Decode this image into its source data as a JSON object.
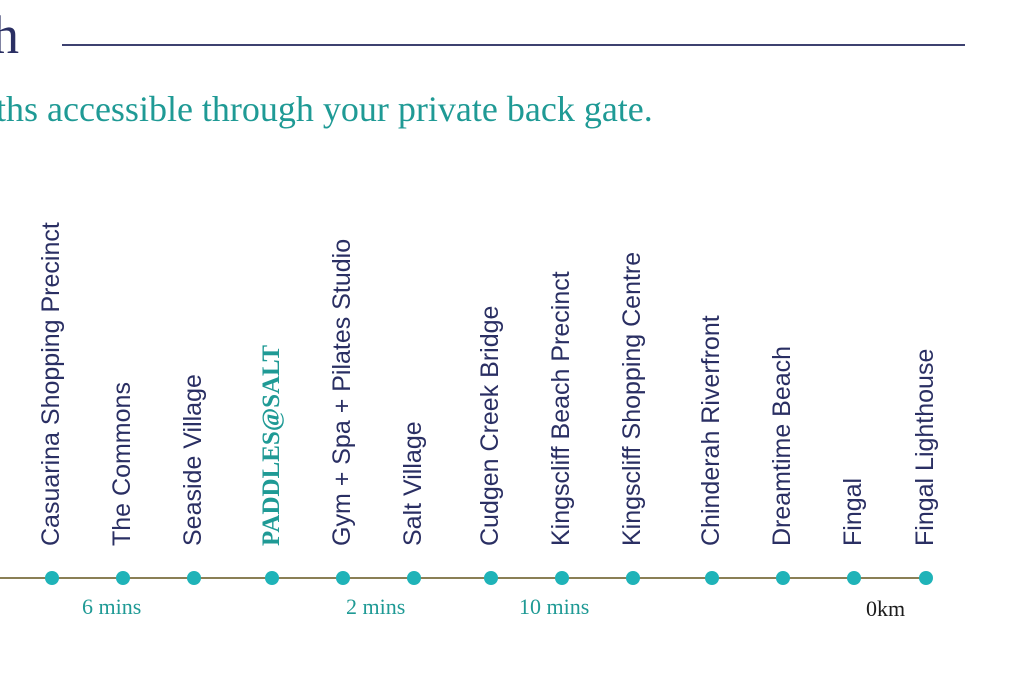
{
  "header": {
    "title_fragment": "h",
    "tagline": "ths accessible through your private back gate."
  },
  "route": {
    "stops": [
      {
        "label": "Casuarina Shopping Precinct",
        "highlight": false
      },
      {
        "label": "The Commons",
        "highlight": false
      },
      {
        "label": "Seaside Village",
        "highlight": false
      },
      {
        "label": "PADDLES@SALT",
        "highlight": true
      },
      {
        "label": "Gym + Spa + Pilates Studio",
        "highlight": false
      },
      {
        "label": "Salt Village",
        "highlight": false
      },
      {
        "label": "Cudgen Creek Bridge",
        "highlight": false
      },
      {
        "label": "Kingscliff Beach Precinct",
        "highlight": false
      },
      {
        "label": "Kingscliff Shopping Centre",
        "highlight": false
      },
      {
        "label": "Chinderah Riverfront",
        "highlight": false
      },
      {
        "label": "Dreamtime Beach",
        "highlight": false
      },
      {
        "label": "Fingal",
        "highlight": false
      },
      {
        "label": "Fingal Lighthouse",
        "highlight": false
      }
    ],
    "times": [
      "6 mins",
      "2 mins",
      "10 mins"
    ],
    "distance_label": "0km",
    "colors": {
      "navy": "#2a2f63",
      "teal": "#1f9a95",
      "dot": "#1fb3b8",
      "track": "#8a7f55"
    }
  }
}
